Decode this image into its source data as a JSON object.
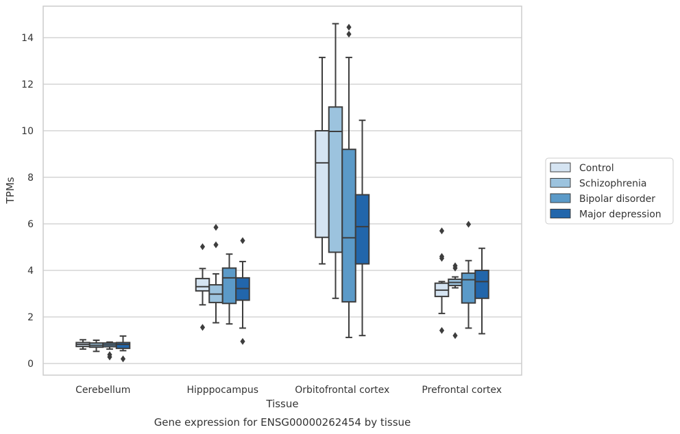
{
  "chart_data": {
    "type": "box",
    "caption": "Gene expression for ENSG00000262454 by tissue",
    "xlabel": "Tissue",
    "ylabel": "TPMs",
    "ylim": [
      -0.5,
      15.3
    ],
    "yticks": [
      0,
      2,
      4,
      6,
      8,
      10,
      12,
      14
    ],
    "grid": "horizontal",
    "legend_position": "right",
    "categories": [
      "Cerebellum",
      "Hipppocampus",
      "Orbitofrontal cortex",
      "Prefrontal cortex"
    ],
    "series": [
      {
        "name": "Control",
        "color": "#d5e4f2",
        "boxes": [
          {
            "whislo": 0.62,
            "q1": 0.73,
            "med": 0.82,
            "q3": 0.9,
            "whishi": 1.02,
            "fliers": []
          },
          {
            "whislo": 2.52,
            "q1": 3.12,
            "med": 3.3,
            "q3": 3.65,
            "whishi": 4.08,
            "fliers": [
              5.02,
              1.55
            ]
          },
          {
            "whislo": 4.28,
            "q1": 5.42,
            "med": 8.62,
            "q3": 10.0,
            "whishi": 13.15,
            "fliers": []
          },
          {
            "whislo": 2.15,
            "q1": 2.88,
            "med": 3.15,
            "q3": 3.45,
            "whishi": 3.52,
            "fliers": [
              5.7,
              4.6,
              4.52,
              1.42
            ]
          }
        ]
      },
      {
        "name": "Schizophrenia",
        "color": "#9cc3de",
        "boxes": [
          {
            "whislo": 0.52,
            "q1": 0.7,
            "med": 0.78,
            "q3": 0.88,
            "whishi": 1.0,
            "fliers": []
          },
          {
            "whislo": 1.75,
            "q1": 2.62,
            "med": 2.98,
            "q3": 3.38,
            "whishi": 3.85,
            "fliers": [
              5.85,
              5.1
            ]
          },
          {
            "whislo": 2.8,
            "q1": 4.78,
            "med": 9.97,
            "q3": 11.02,
            "whishi": 14.6,
            "fliers": []
          },
          {
            "whislo": 3.25,
            "q1": 3.35,
            "med": 3.48,
            "q3": 3.62,
            "whishi": 3.72,
            "fliers": [
              4.2,
              4.1,
              1.2
            ]
          }
        ]
      },
      {
        "name": "Bipolar disorder",
        "color": "#5b9ac8",
        "boxes": [
          {
            "whislo": 0.62,
            "q1": 0.72,
            "med": 0.8,
            "q3": 0.88,
            "whishi": 0.92,
            "fliers": [
              0.38,
              0.28
            ]
          },
          {
            "whislo": 1.7,
            "q1": 2.58,
            "med": 3.68,
            "q3": 4.1,
            "whishi": 4.7,
            "fliers": []
          },
          {
            "whislo": 1.12,
            "q1": 2.65,
            "med": 5.4,
            "q3": 9.2,
            "whishi": 13.15,
            "fliers": [
              14.45,
              14.15
            ]
          },
          {
            "whislo": 1.52,
            "q1": 2.6,
            "med": 3.6,
            "q3": 3.88,
            "whishi": 4.42,
            "fliers": [
              5.98
            ]
          }
        ]
      },
      {
        "name": "Major depression",
        "color": "#2266ab",
        "boxes": [
          {
            "whislo": 0.55,
            "q1": 0.65,
            "med": 0.82,
            "q3": 0.9,
            "whishi": 1.18,
            "fliers": [
              0.2
            ]
          },
          {
            "whislo": 1.52,
            "q1": 2.72,
            "med": 3.22,
            "q3": 3.68,
            "whishi": 4.38,
            "fliers": [
              5.28,
              0.95
            ]
          },
          {
            "whislo": 1.2,
            "q1": 4.28,
            "med": 5.88,
            "q3": 7.25,
            "whishi": 10.45,
            "fliers": []
          },
          {
            "whislo": 1.28,
            "q1": 2.8,
            "med": 3.52,
            "q3": 4.0,
            "whishi": 4.95,
            "fliers": []
          }
        ]
      }
    ]
  }
}
